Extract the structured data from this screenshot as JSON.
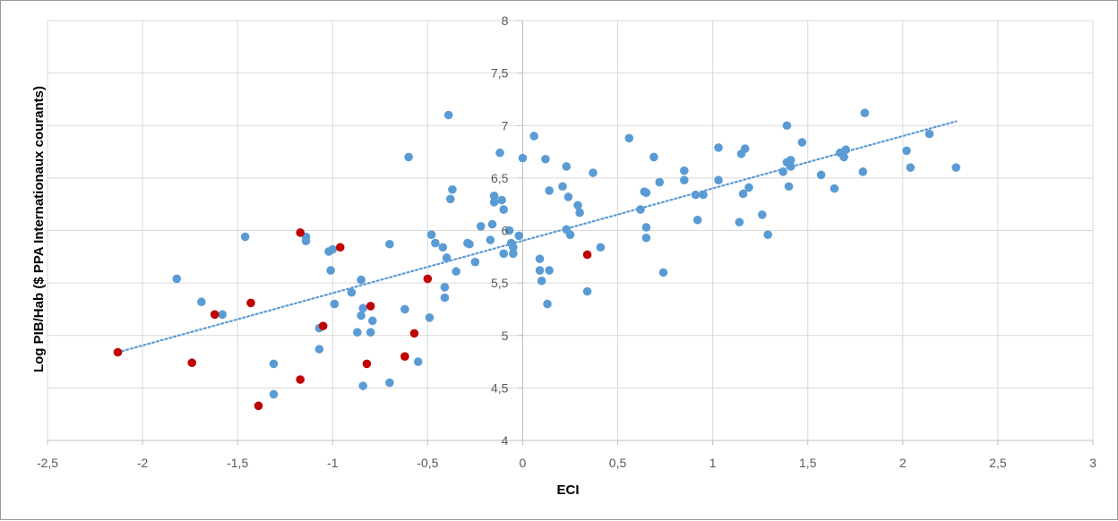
{
  "chart_data": {
    "type": "scatter",
    "title": "",
    "xlabel": "ECI",
    "ylabel": "Log PIB/Hab ($ PPA Internationaux courants)",
    "xlim": [
      -2.5,
      3
    ],
    "ylim": [
      4,
      8
    ],
    "x_ticks": [
      "-2,5",
      "-2",
      "-1,5",
      "-1",
      "-0,5",
      "0",
      "0,5",
      "1",
      "1,5",
      "2",
      "2,5",
      "3"
    ],
    "y_ticks": [
      "4",
      "4,5",
      "5",
      "5,5",
      "6",
      "6,5",
      "7",
      "7,5",
      "8"
    ],
    "grid": true,
    "legend": "none",
    "colors": {
      "blue": "#5b9bd5",
      "red": "#c00000",
      "trend": "#5b9bd5",
      "grid": "#d9d9d9",
      "axis": "#bfbfbf"
    },
    "trendline": {
      "type": "linear",
      "x_start": -2.13,
      "x_end": 2.28,
      "y_start": 4.84,
      "y_end": 7.04,
      "style": "dotted"
    },
    "series": [
      {
        "color": "#5b9bd5",
        "points": [
          [
            -1.82,
            5.54
          ],
          [
            -1.69,
            5.32
          ],
          [
            -1.58,
            5.2
          ],
          [
            -1.46,
            5.94
          ],
          [
            -1.31,
            4.73
          ],
          [
            -1.31,
            4.44
          ],
          [
            -1.14,
            5.94
          ],
          [
            -1.14,
            5.9
          ],
          [
            -1.07,
            5.07
          ],
          [
            -1.07,
            4.87
          ],
          [
            -1.02,
            5.8
          ],
          [
            -1.01,
            5.62
          ],
          [
            -1.0,
            5.82
          ],
          [
            -0.99,
            5.3
          ],
          [
            -0.9,
            5.41
          ],
          [
            -0.87,
            5.03
          ],
          [
            -0.85,
            5.53
          ],
          [
            -0.85,
            5.19
          ],
          [
            -0.84,
            5.26
          ],
          [
            -0.84,
            4.52
          ],
          [
            -0.8,
            5.03
          ],
          [
            -0.79,
            5.14
          ],
          [
            -0.7,
            5.87
          ],
          [
            -0.7,
            4.55
          ],
          [
            -0.62,
            5.25
          ],
          [
            -0.6,
            6.7
          ],
          [
            -0.55,
            4.75
          ],
          [
            -0.49,
            5.17
          ],
          [
            -0.48,
            5.96
          ],
          [
            -0.46,
            5.88
          ],
          [
            -0.42,
            5.84
          ],
          [
            -0.41,
            5.46
          ],
          [
            -0.41,
            5.36
          ],
          [
            -0.4,
            5.74
          ],
          [
            -0.39,
            7.1
          ],
          [
            -0.38,
            6.3
          ],
          [
            -0.37,
            6.39
          ],
          [
            -0.35,
            5.61
          ],
          [
            -0.29,
            5.88
          ],
          [
            -0.28,
            5.87
          ],
          [
            -0.25,
            5.7
          ],
          [
            -0.22,
            6.04
          ],
          [
            -0.17,
            5.91
          ],
          [
            -0.16,
            6.06
          ],
          [
            -0.15,
            6.33
          ],
          [
            -0.15,
            6.27
          ],
          [
            -0.12,
            6.74
          ],
          [
            -0.11,
            6.29
          ],
          [
            -0.1,
            6.2
          ],
          [
            -0.1,
            5.78
          ],
          [
            -0.07,
            6.0
          ],
          [
            -0.06,
            5.88
          ],
          [
            -0.05,
            5.84
          ],
          [
            -0.05,
            5.78
          ],
          [
            -0.02,
            5.95
          ],
          [
            0.0,
            6.69
          ],
          [
            0.06,
            6.9
          ],
          [
            0.09,
            5.73
          ],
          [
            0.09,
            5.62
          ],
          [
            0.1,
            5.52
          ],
          [
            0.12,
            6.68
          ],
          [
            0.13,
            5.3
          ],
          [
            0.14,
            6.38
          ],
          [
            0.14,
            5.62
          ],
          [
            0.21,
            6.42
          ],
          [
            0.23,
            6.61
          ],
          [
            0.23,
            6.01
          ],
          [
            0.24,
            6.32
          ],
          [
            0.25,
            5.96
          ],
          [
            0.29,
            6.24
          ],
          [
            0.3,
            6.17
          ],
          [
            0.34,
            5.42
          ],
          [
            0.37,
            6.55
          ],
          [
            0.41,
            5.84
          ],
          [
            0.56,
            6.88
          ],
          [
            0.62,
            6.2
          ],
          [
            0.64,
            6.37
          ],
          [
            0.65,
            6.36
          ],
          [
            0.65,
            6.03
          ],
          [
            0.65,
            5.93
          ],
          [
            0.69,
            6.7
          ],
          [
            0.72,
            6.46
          ],
          [
            0.74,
            5.6
          ],
          [
            0.85,
            6.57
          ],
          [
            0.85,
            6.48
          ],
          [
            0.91,
            6.34
          ],
          [
            0.92,
            6.1
          ],
          [
            0.95,
            6.34
          ],
          [
            1.03,
            6.79
          ],
          [
            1.03,
            6.48
          ],
          [
            1.14,
            6.08
          ],
          [
            1.15,
            6.73
          ],
          [
            1.16,
            6.35
          ],
          [
            1.17,
            6.78
          ],
          [
            1.19,
            6.41
          ],
          [
            1.26,
            6.15
          ],
          [
            1.29,
            5.96
          ],
          [
            1.37,
            6.56
          ],
          [
            1.39,
            7.0
          ],
          [
            1.39,
            6.65
          ],
          [
            1.4,
            6.42
          ],
          [
            1.41,
            6.67
          ],
          [
            1.41,
            6.61
          ],
          [
            1.47,
            6.84
          ],
          [
            1.57,
            6.53
          ],
          [
            1.64,
            6.4
          ],
          [
            1.67,
            6.74
          ],
          [
            1.69,
            6.7
          ],
          [
            1.7,
            6.77
          ],
          [
            1.79,
            6.56
          ],
          [
            1.8,
            7.12
          ],
          [
            2.02,
            6.76
          ],
          [
            2.04,
            6.6
          ],
          [
            2.14,
            6.92
          ],
          [
            2.28,
            6.6
          ]
        ]
      },
      {
        "color": "#c00000",
        "points": [
          [
            -2.13,
            4.84
          ],
          [
            -1.74,
            4.74
          ],
          [
            -1.62,
            5.2
          ],
          [
            -1.43,
            5.31
          ],
          [
            -1.39,
            4.33
          ],
          [
            -1.17,
            5.98
          ],
          [
            -1.17,
            4.58
          ],
          [
            -1.05,
            5.09
          ],
          [
            -0.96,
            5.84
          ],
          [
            -0.82,
            4.73
          ],
          [
            -0.8,
            5.28
          ],
          [
            -0.62,
            4.8
          ],
          [
            -0.57,
            5.02
          ],
          [
            -0.5,
            5.54
          ],
          [
            0.34,
            5.77
          ]
        ]
      }
    ]
  }
}
